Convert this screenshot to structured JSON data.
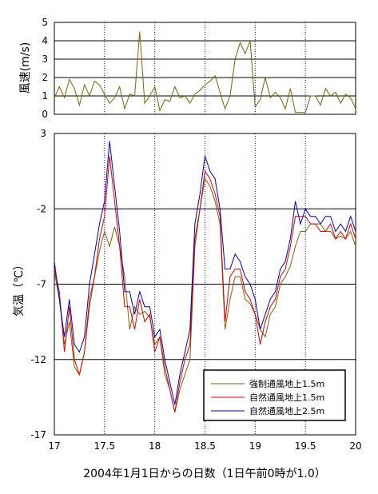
{
  "chart_data": [
    {
      "type": "line",
      "ylabel": "風速(m/s)",
      "xlim": [
        17,
        20
      ],
      "ylim": [
        0,
        5
      ],
      "y_ticks": [
        "0",
        "1",
        "2",
        "3",
        "4",
        "5"
      ],
      "grid": true,
      "series": [
        {
          "color": "#806000",
          "x": [
            17.0,
            17.05,
            17.1,
            17.15,
            17.2,
            17.25,
            17.3,
            17.35,
            17.4,
            17.45,
            17.5,
            17.55,
            17.6,
            17.65,
            17.7,
            17.75,
            17.8,
            17.85,
            17.9,
            17.95,
            18.0,
            18.05,
            18.1,
            18.15,
            18.2,
            18.25,
            18.3,
            18.35,
            18.4,
            18.45,
            18.5,
            18.55,
            18.6,
            18.65,
            18.7,
            18.75,
            18.8,
            18.85,
            18.9,
            18.95,
            19.0,
            19.05,
            19.1,
            19.15,
            19.2,
            19.25,
            19.3,
            19.35,
            19.4,
            19.45,
            19.5,
            19.55,
            19.6,
            19.65,
            19.7,
            19.75,
            19.8,
            19.85,
            19.9,
            19.95,
            20.0
          ],
          "values": [
            0.9,
            1.5,
            0.9,
            1.9,
            1.4,
            0.5,
            1.6,
            1.0,
            1.8,
            1.6,
            1.1,
            0.6,
            0.9,
            1.5,
            0.3,
            1.1,
            1.0,
            4.5,
            0.6,
            1.0,
            1.5,
            0.2,
            0.8,
            0.7,
            1.5,
            0.9,
            1.0,
            0.6,
            1.1,
            1.3,
            1.6,
            1.8,
            2.1,
            1.2,
            0.3,
            1.0,
            3.0,
            3.9,
            3.3,
            4.0,
            0.4,
            0.8,
            2.0,
            0.9,
            1.2,
            0.9,
            0.3,
            1.4,
            0.1,
            0.1,
            0.1,
            1.0,
            1.0,
            0.5,
            1.4,
            1.0,
            1.2,
            0.6,
            1.1,
            0.9,
            0.3
          ]
        }
      ]
    },
    {
      "type": "line",
      "ylabel": "気温（℃）",
      "xlabel": "2004年1月1日からの日数（1日午前0時が1.0）",
      "xlim": [
        17,
        20
      ],
      "ylim": [
        -17,
        3
      ],
      "x_ticks": [
        "17",
        "17.5",
        "18",
        "18.5",
        "19",
        "19.5",
        "20"
      ],
      "y_ticks": [
        "3",
        "-2",
        "-7",
        "-12",
        "-17"
      ],
      "grid": true,
      "legend_position": "bottom-right",
      "series": [
        {
          "name": "強制通風地上1.5m",
          "color": "#806000",
          "x": [
            17.0,
            17.05,
            17.1,
            17.15,
            17.2,
            17.25,
            17.3,
            17.35,
            17.4,
            17.45,
            17.5,
            17.55,
            17.6,
            17.65,
            17.7,
            17.75,
            17.8,
            17.85,
            17.9,
            17.95,
            18.0,
            18.05,
            18.1,
            18.15,
            18.2,
            18.25,
            18.3,
            18.35,
            18.4,
            18.45,
            18.5,
            18.55,
            18.6,
            18.65,
            18.7,
            18.75,
            18.8,
            18.85,
            18.9,
            18.95,
            19.0,
            19.05,
            19.1,
            19.15,
            19.2,
            19.25,
            19.3,
            19.35,
            19.4,
            19.45,
            19.5,
            19.55,
            19.6,
            19.65,
            19.7,
            19.75,
            19.8,
            19.85,
            19.9,
            19.95,
            20.0
          ],
          "values": [
            -6.2,
            -8.0,
            -11.0,
            -9.5,
            -12.5,
            -13.0,
            -11.5,
            -8.5,
            -6.5,
            -4.8,
            -3.5,
            -4.5,
            -3.2,
            -4.5,
            -6.5,
            -10.0,
            -8.5,
            -9.0,
            -8.8,
            -9.2,
            -11.0,
            -10.5,
            -13.0,
            -14.0,
            -15.5,
            -14.0,
            -13.0,
            -12.0,
            -4.5,
            -2.0,
            0.0,
            -0.5,
            -1.5,
            -3.0,
            -10.0,
            -8.0,
            -6.5,
            -6.5,
            -8.0,
            -8.3,
            -9.0,
            -10.0,
            -10.5,
            -9.0,
            -8.5,
            -7.0,
            -6.5,
            -5.8,
            -4.5,
            -3.5,
            -3.5,
            -3.0,
            -3.0,
            -3.0,
            -3.5,
            -3.5,
            -4.0,
            -3.8,
            -4.0,
            -3.5,
            -4.5
          ]
        },
        {
          "name": "自然通風地上1.5m",
          "color": "#e00000",
          "x": [
            17.0,
            17.05,
            17.1,
            17.15,
            17.2,
            17.25,
            17.3,
            17.35,
            17.4,
            17.45,
            17.5,
            17.55,
            17.6,
            17.65,
            17.7,
            17.75,
            17.8,
            17.85,
            17.9,
            17.95,
            18.0,
            18.05,
            18.1,
            18.15,
            18.2,
            18.25,
            18.3,
            18.35,
            18.4,
            18.45,
            18.5,
            18.55,
            18.6,
            18.65,
            18.7,
            18.75,
            18.8,
            18.85,
            18.9,
            18.95,
            19.0,
            19.05,
            19.1,
            19.15,
            19.2,
            19.25,
            19.3,
            19.35,
            19.4,
            19.45,
            19.5,
            19.55,
            19.6,
            19.65,
            19.7,
            19.75,
            19.8,
            19.85,
            19.9,
            19.95,
            20.0
          ],
          "values": [
            -6.0,
            -7.5,
            -11.5,
            -8.5,
            -12.0,
            -13.0,
            -11.5,
            -8.0,
            -6.5,
            -4.0,
            -2.5,
            1.5,
            -1.5,
            -4.5,
            -8.5,
            -8.5,
            -10.0,
            -8.0,
            -9.5,
            -9.0,
            -11.5,
            -10.5,
            -12.5,
            -14.0,
            -15.5,
            -13.5,
            -12.0,
            -11.0,
            -4.0,
            -2.0,
            0.5,
            0.0,
            -1.0,
            -2.5,
            -9.5,
            -6.5,
            -6.0,
            -6.0,
            -7.5,
            -8.0,
            -9.0,
            -11.0,
            -9.5,
            -8.5,
            -8.0,
            -6.5,
            -6.0,
            -4.5,
            -2.5,
            -2.5,
            -2.5,
            -3.0,
            -3.0,
            -3.5,
            -3.5,
            -3.0,
            -4.0,
            -3.5,
            -4.0,
            -3.0,
            -4.0
          ]
        },
        {
          "name": "自然通風地上2.5m",
          "color": "#0000c0",
          "x": [
            17.0,
            17.05,
            17.1,
            17.15,
            17.2,
            17.25,
            17.3,
            17.35,
            17.4,
            17.45,
            17.5,
            17.55,
            17.6,
            17.65,
            17.7,
            17.75,
            17.8,
            17.85,
            17.9,
            17.95,
            18.0,
            18.05,
            18.1,
            18.15,
            18.2,
            18.25,
            18.3,
            18.35,
            18.4,
            18.45,
            18.5,
            18.55,
            18.6,
            18.65,
            18.7,
            18.75,
            18.8,
            18.85,
            18.9,
            18.95,
            19.0,
            19.05,
            19.1,
            19.15,
            19.2,
            19.25,
            19.3,
            19.35,
            19.4,
            19.45,
            19.5,
            19.55,
            19.6,
            19.65,
            19.7,
            19.75,
            19.8,
            19.85,
            19.9,
            19.95,
            20.0
          ],
          "values": [
            -5.5,
            -8.0,
            -10.5,
            -8.0,
            -11.0,
            -11.5,
            -10.5,
            -7.0,
            -5.0,
            -3.0,
            -1.5,
            2.5,
            -0.5,
            -3.5,
            -7.5,
            -7.5,
            -9.0,
            -7.5,
            -8.5,
            -8.5,
            -10.5,
            -10.0,
            -12.0,
            -13.5,
            -15.0,
            -13.0,
            -11.5,
            -10.0,
            -3.0,
            -1.0,
            1.5,
            0.5,
            0.0,
            -2.0,
            -6.0,
            -6.0,
            -5.0,
            -5.5,
            -6.5,
            -7.0,
            -8.0,
            -10.0,
            -9.0,
            -8.0,
            -7.5,
            -6.0,
            -5.5,
            -4.0,
            -1.5,
            -3.0,
            -2.0,
            -2.5,
            -2.5,
            -3.0,
            -2.5,
            -2.5,
            -3.5,
            -3.0,
            -3.5,
            -2.5,
            -3.5
          ]
        }
      ]
    }
  ]
}
